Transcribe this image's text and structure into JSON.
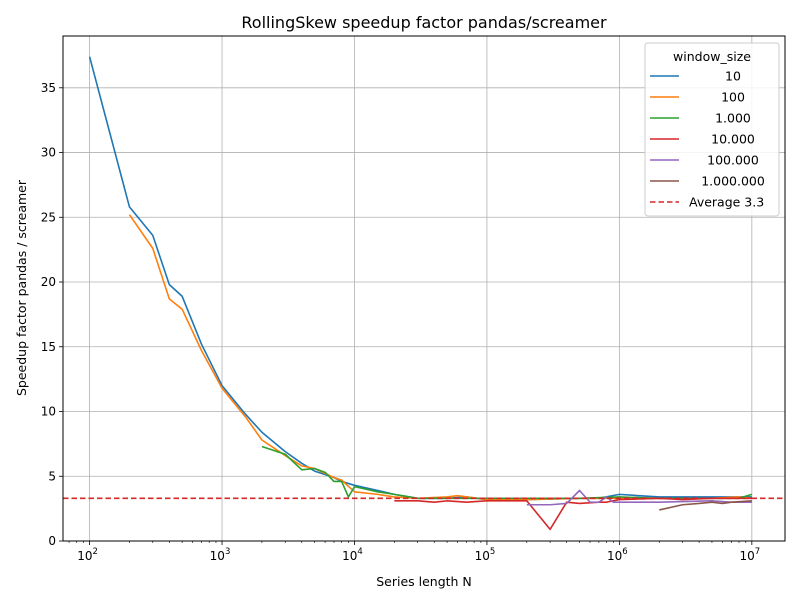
{
  "chart_data": {
    "type": "line",
    "title": "RollingSkew speedup factor pandas/screamer",
    "xlabel": "Series length N",
    "ylabel": "Speedup factor pandas / screamer",
    "xscale": "log",
    "xlim": [
      63,
      17800000
    ],
    "ylim": [
      0,
      39
    ],
    "x_ticks": [
      {
        "value": 100,
        "base": "10",
        "exp": "2"
      },
      {
        "value": 1000,
        "base": "10",
        "exp": "3"
      },
      {
        "value": 10000,
        "base": "10",
        "exp": "4"
      },
      {
        "value": 100000,
        "base": "10",
        "exp": "5"
      },
      {
        "value": 1000000,
        "base": "10",
        "exp": "6"
      },
      {
        "value": 10000000,
        "base": "10",
        "exp": "7"
      }
    ],
    "y_ticks": [
      0,
      5,
      10,
      15,
      20,
      25,
      30,
      35
    ],
    "grid": true,
    "legend": {
      "title": "window_size",
      "position": "top-right"
    },
    "series": [
      {
        "name": "10",
        "color": "#1f77b4",
        "points": [
          [
            100,
            37.4
          ],
          [
            200,
            25.8
          ],
          [
            300,
            23.6
          ],
          [
            400,
            19.8
          ],
          [
            500,
            18.9
          ],
          [
            700,
            15.2
          ],
          [
            1000,
            12.0
          ],
          [
            1500,
            9.8
          ],
          [
            2000,
            8.4
          ],
          [
            3000,
            6.9
          ],
          [
            4000,
            6.0
          ],
          [
            5000,
            5.4
          ],
          [
            7000,
            4.9
          ],
          [
            8000,
            4.6
          ],
          [
            10000,
            4.3
          ],
          [
            15000,
            3.9
          ],
          [
            20000,
            3.6
          ],
          [
            30000,
            3.3
          ],
          [
            50000,
            3.3
          ],
          [
            70000,
            3.4
          ],
          [
            100000,
            3.2
          ],
          [
            200000,
            3.2
          ],
          [
            500000,
            3.3
          ],
          [
            700000,
            3.3
          ],
          [
            1000000,
            3.6
          ],
          [
            2000000,
            3.4
          ],
          [
            5000000,
            3.4
          ],
          [
            10000000,
            3.4
          ]
        ]
      },
      {
        "name": "100",
        "color": "#ff7f0e",
        "points": [
          [
            200,
            25.2
          ],
          [
            300,
            22.6
          ],
          [
            400,
            18.7
          ],
          [
            500,
            17.9
          ],
          [
            700,
            14.7
          ],
          [
            1000,
            11.8
          ],
          [
            1500,
            9.6
          ],
          [
            2000,
            7.8
          ],
          [
            3000,
            6.6
          ],
          [
            4000,
            5.8
          ],
          [
            5000,
            5.6
          ],
          [
            7000,
            4.9
          ],
          [
            8000,
            4.7
          ],
          [
            10000,
            3.8
          ],
          [
            15000,
            3.6
          ],
          [
            20000,
            3.4
          ],
          [
            30000,
            3.3
          ],
          [
            50000,
            3.4
          ],
          [
            60000,
            3.5
          ],
          [
            100000,
            3.2
          ],
          [
            200000,
            3.2
          ],
          [
            500000,
            3.3
          ],
          [
            1000000,
            3.3
          ],
          [
            2000000,
            3.3
          ],
          [
            5000000,
            3.3
          ],
          [
            8000000,
            3.4
          ],
          [
            10000000,
            3.3
          ]
        ]
      },
      {
        "name": "1.000",
        "color": "#2ca02c",
        "points": [
          [
            2000,
            7.3
          ],
          [
            3000,
            6.7
          ],
          [
            4000,
            5.5
          ],
          [
            5000,
            5.6
          ],
          [
            6000,
            5.3
          ],
          [
            7000,
            4.6
          ],
          [
            8000,
            4.6
          ],
          [
            9000,
            3.4
          ],
          [
            10000,
            4.2
          ],
          [
            15000,
            3.8
          ],
          [
            20000,
            3.6
          ],
          [
            30000,
            3.3
          ],
          [
            50000,
            3.3
          ],
          [
            100000,
            3.3
          ],
          [
            200000,
            3.3
          ],
          [
            500000,
            3.3
          ],
          [
            1000000,
            3.4
          ],
          [
            2000000,
            3.3
          ],
          [
            5000000,
            3.3
          ],
          [
            8000000,
            3.3
          ],
          [
            10000000,
            3.6
          ]
        ]
      },
      {
        "name": "10.000",
        "color": "#d62728",
        "points": [
          [
            20000,
            3.1
          ],
          [
            30000,
            3.1
          ],
          [
            40000,
            3.0
          ],
          [
            50000,
            3.1
          ],
          [
            70000,
            3.0
          ],
          [
            100000,
            3.1
          ],
          [
            200000,
            3.1
          ],
          [
            300000,
            0.9
          ],
          [
            400000,
            3.0
          ],
          [
            500000,
            2.9
          ],
          [
            700000,
            3.0
          ],
          [
            800000,
            3.0
          ],
          [
            1000000,
            3.2
          ],
          [
            2000000,
            3.3
          ],
          [
            3000000,
            3.2
          ],
          [
            5000000,
            3.3
          ],
          [
            7000000,
            3.3
          ],
          [
            10000000,
            3.3
          ]
        ]
      },
      {
        "name": "100.000",
        "color": "#9467bd",
        "points": [
          [
            200000,
            2.8
          ],
          [
            300000,
            2.8
          ],
          [
            400000,
            2.9
          ],
          [
            500000,
            3.9
          ],
          [
            600000,
            3.0
          ],
          [
            700000,
            3.0
          ],
          [
            800000,
            3.4
          ],
          [
            900000,
            3.0
          ],
          [
            1000000,
            3.0
          ],
          [
            2000000,
            3.0
          ],
          [
            5000000,
            3.1
          ],
          [
            7000000,
            3.0
          ],
          [
            10000000,
            3.0
          ]
        ]
      },
      {
        "name": "1.000.000",
        "color": "#8c564b",
        "points": [
          [
            2000000,
            2.4
          ],
          [
            3000000,
            2.8
          ],
          [
            4000000,
            2.9
          ],
          [
            5000000,
            3.0
          ],
          [
            6000000,
            2.9
          ],
          [
            7000000,
            3.0
          ],
          [
            10000000,
            3.1
          ]
        ]
      }
    ],
    "average_line": {
      "label": "Average 3.3",
      "value": 3.3,
      "color": "#d62728",
      "style": "dashed"
    }
  }
}
